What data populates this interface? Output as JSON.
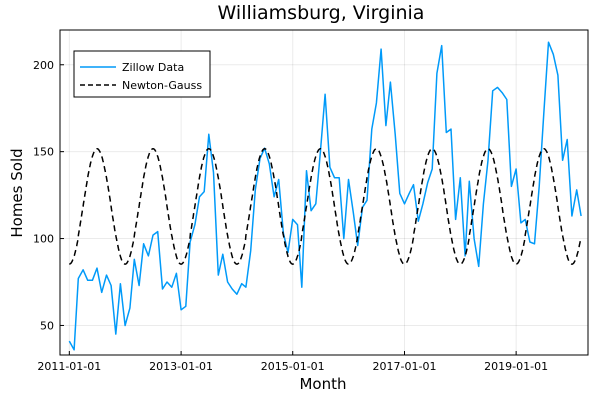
{
  "chart_data": {
    "type": "line",
    "title": "Williamsburg, Virginia",
    "xlabel": "Month",
    "ylabel": "Homes Sold",
    "x_ticks": [
      "2011-01-01",
      "2013-01-01",
      "2015-01-01",
      "2017-01-01",
      "2019-01-01"
    ],
    "y_ticks": [
      50,
      100,
      150,
      200
    ],
    "xlim": [
      "2010-11-01",
      "2020-04-15"
    ],
    "ylim": [
      33,
      220
    ],
    "grid": true,
    "legend_position": "top-left",
    "series": [
      {
        "name": "Zillow Data",
        "style": "solid",
        "color": "#009af9",
        "start": "2011-01-01",
        "frequency": "monthly",
        "values": [
          41,
          36,
          77,
          82,
          76,
          76,
          83,
          69,
          79,
          73,
          45,
          74,
          50,
          60,
          88,
          73,
          97,
          90,
          102,
          104,
          71,
          75,
          72,
          80,
          59,
          61,
          98,
          108,
          124,
          127,
          160,
          138,
          79,
          91,
          75,
          71,
          68,
          74,
          72,
          93,
          128,
          146,
          152,
          143,
          124,
          134,
          103,
          92,
          111,
          108,
          72,
          139,
          116,
          120,
          150,
          183,
          141,
          135,
          135,
          100,
          134,
          115,
          96,
          118,
          122,
          163,
          178,
          209,
          165,
          190,
          160,
          126,
          120,
          126,
          131,
          110,
          120,
          132,
          140,
          195,
          211,
          161,
          163,
          111,
          135,
          90,
          133,
          100,
          84,
          120,
          145,
          185,
          187,
          184,
          180,
          130,
          140,
          109,
          111,
          98,
          97,
          130,
          172,
          213,
          206,
          194,
          145,
          157,
          113,
          128,
          113
        ]
      },
      {
        "name": "Newton-Gauss",
        "style": "dashed",
        "color": "#000000",
        "model": {
          "mean": 118.5,
          "amplitude": 33.2,
          "period_months": 12,
          "peak_month": 6
        },
        "start": "2011-01-01",
        "end": "2020-03-01"
      }
    ]
  }
}
